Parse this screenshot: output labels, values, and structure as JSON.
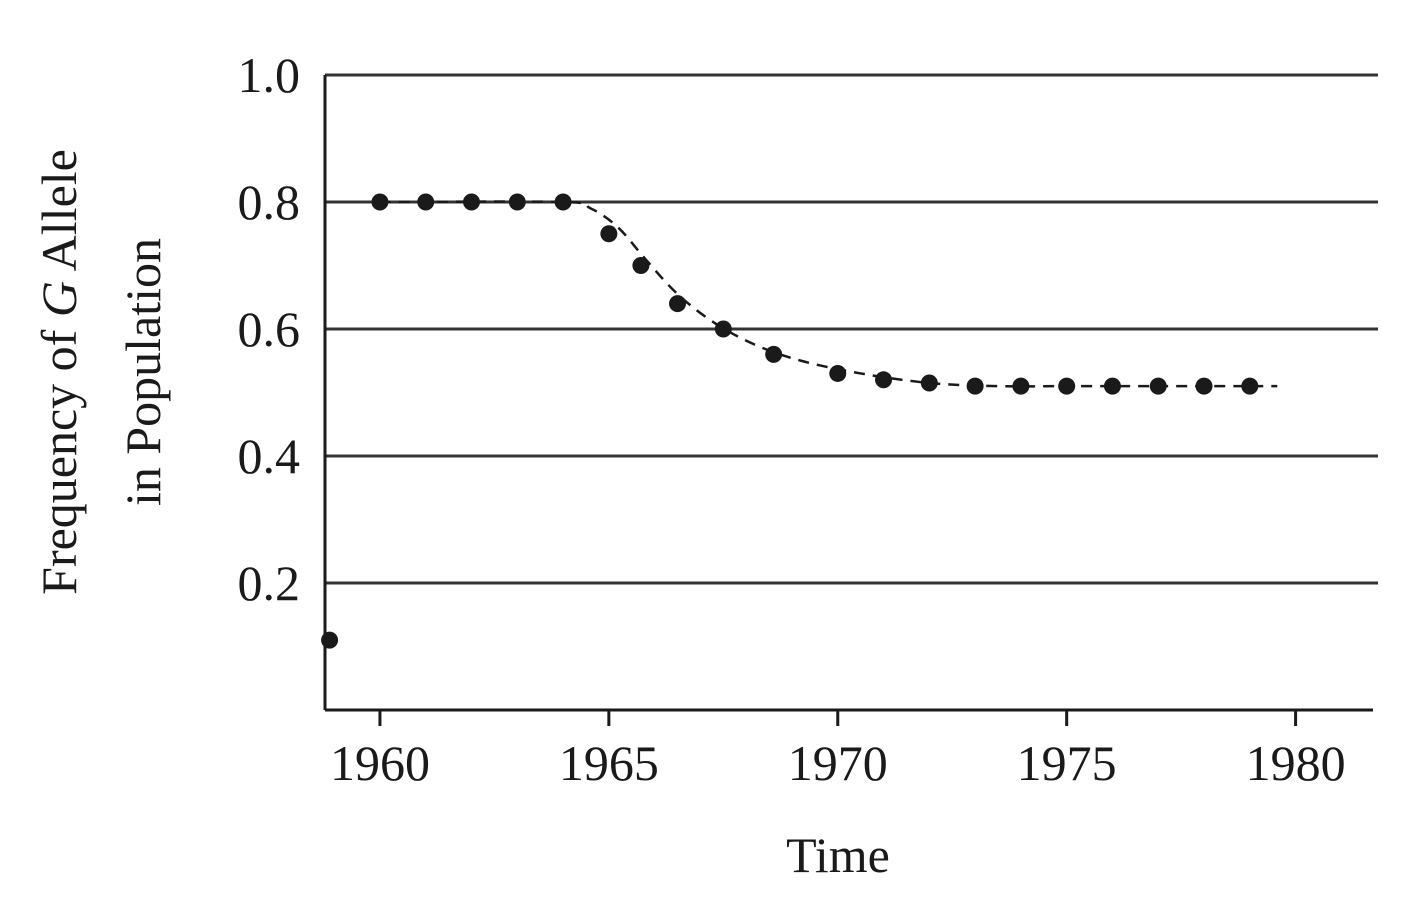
{
  "chart_data": {
    "type": "scatter",
    "xlabel": "Time",
    "ylabel_lines": [
      {
        "pre": "Frequency of ",
        "italic": "G",
        "post": " Allele"
      },
      {
        "pre": "in Population",
        "italic": "",
        "post": ""
      }
    ],
    "xlim": [
      1958.8,
      1981.8
    ],
    "ylim": [
      0,
      1.0
    ],
    "x_ticks": [
      1960,
      1965,
      1970,
      1975,
      1980
    ],
    "x_tick_labels": [
      "1960",
      "1965",
      "1970",
      "1975",
      "1980"
    ],
    "y_ticks": [
      0.2,
      0.4,
      0.6,
      0.8,
      1.0
    ],
    "y_tick_labels": [
      "0.2",
      "0.4",
      "0.6",
      "0.8",
      "1.0"
    ],
    "grid": "horizontal",
    "trend_line": "dashed",
    "colors": {
      "ink": "#1a1a1a",
      "grid": "#333333"
    },
    "series": [
      {
        "x": [
          1958.9,
          1960,
          1961,
          1962,
          1963,
          1964,
          1965,
          1965.7,
          1966.5,
          1967.5,
          1968.6,
          1970,
          1971,
          1972,
          1973,
          1974,
          1975,
          1976,
          1977,
          1978,
          1979
        ],
        "y": [
          0.11,
          0.8,
          0.8,
          0.8,
          0.8,
          0.8,
          0.75,
          0.7,
          0.64,
          0.6,
          0.56,
          0.53,
          0.52,
          0.515,
          0.51,
          0.51,
          0.51,
          0.51,
          0.51,
          0.51,
          0.51
        ]
      }
    ],
    "trend": {
      "x": [
        1960,
        1964,
        1964.6,
        1965.2,
        1965.8,
        1966.5,
        1967.3,
        1968.2,
        1969.2,
        1970.5,
        1972,
        1973.5,
        1975,
        1977,
        1979.6
      ],
      "y": [
        0.8,
        0.8,
        0.79,
        0.76,
        0.71,
        0.655,
        0.61,
        0.575,
        0.55,
        0.53,
        0.515,
        0.51,
        0.51,
        0.51,
        0.51
      ]
    }
  }
}
